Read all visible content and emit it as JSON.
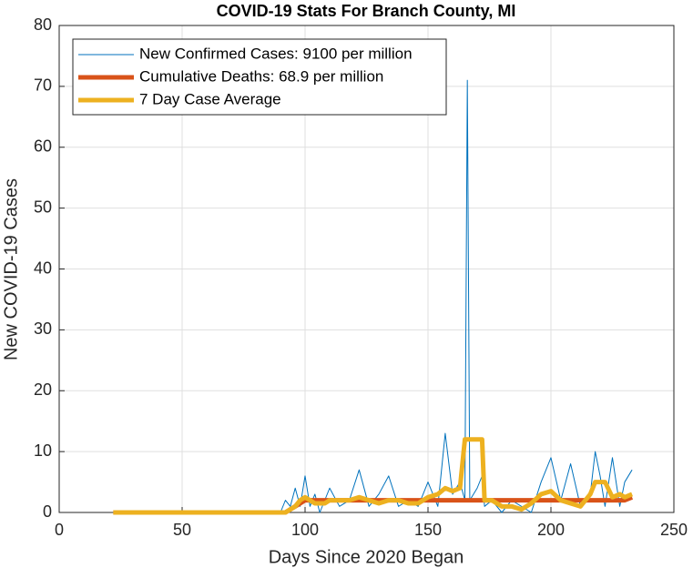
{
  "chart_data": {
    "type": "line",
    "title": "COVID-19 Stats For Branch County, MI",
    "x_label": "Days Since 2020 Began",
    "y_label": "New COVID-19 Cases",
    "x": [
      22,
      90,
      92,
      94,
      96,
      98,
      100,
      102,
      104,
      106,
      108,
      110,
      114,
      118,
      122,
      126,
      130,
      134,
      138,
      142,
      146,
      150,
      154,
      157,
      160,
      163,
      165,
      166,
      167,
      170,
      172,
      173,
      176,
      180,
      184,
      188,
      192,
      196,
      200,
      204,
      208,
      212,
      216,
      218,
      220,
      222,
      225,
      228,
      230,
      233
    ],
    "series": [
      {
        "name": "New Confirmed Cases: 9100 per million",
        "color": "#0072BD",
        "width": 1,
        "values": [
          0,
          0,
          2,
          1,
          4,
          1,
          6,
          1,
          3,
          0,
          2,
          4,
          1,
          2,
          7,
          1,
          3,
          6,
          1,
          2,
          1,
          5,
          1,
          13,
          3,
          5,
          2,
          71,
          2,
          4,
          6,
          1,
          2,
          0,
          2,
          1,
          0,
          5,
          9,
          2,
          8,
          1,
          3,
          10,
          6,
          1,
          9,
          1,
          5,
          7
        ]
      },
      {
        "name": "Cumulative Deaths: 68.9 per million",
        "color": "#D95319",
        "width": 5,
        "values": [
          0,
          0,
          0,
          0.5,
          1,
          1.5,
          2,
          2,
          2,
          2,
          2,
          2,
          2,
          2,
          2,
          2,
          2,
          2,
          2,
          2,
          2,
          2,
          2,
          2,
          2,
          2,
          2,
          2,
          2,
          2,
          2,
          2,
          2,
          2,
          2,
          2,
          2,
          2,
          2,
          2,
          2,
          2,
          2,
          2,
          2,
          2,
          2,
          2,
          2,
          2.5
        ]
      },
      {
        "name": "7 Day Case Average",
        "color": "#EDB120",
        "width": 5,
        "values": [
          0,
          0,
          0,
          0.5,
          1,
          2,
          2.5,
          2,
          1.5,
          1.5,
          1.5,
          2,
          2,
          2,
          2.5,
          2,
          1.5,
          2,
          2,
          1.5,
          1.5,
          2.5,
          3,
          4,
          3.5,
          4,
          12,
          12,
          12,
          12,
          12,
          2,
          2,
          1,
          1,
          0.5,
          1.5,
          3,
          3.5,
          2,
          1.5,
          1,
          3,
          5,
          5,
          5,
          2.5,
          3,
          2.5,
          3
        ]
      }
    ],
    "xlim": [
      0,
      250
    ],
    "xticks": [
      0,
      50,
      100,
      150,
      200,
      250
    ],
    "ylim": [
      0,
      80
    ],
    "yticks": [
      0,
      10,
      20,
      30,
      40,
      50,
      60,
      70,
      80
    ],
    "grid": true,
    "legend": "upper-left"
  }
}
